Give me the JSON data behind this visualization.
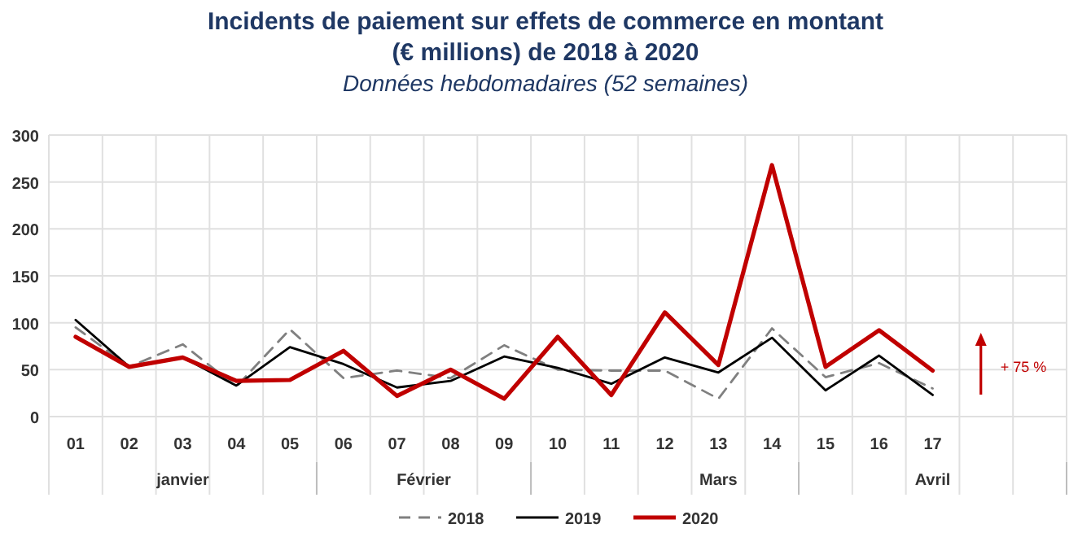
{
  "chart_data": {
    "type": "line",
    "title": "Incidents de paiement sur effets de commerce en montant\n(€ millions) de 2018 à 2020",
    "subtitle": "Données hebdomadaires (52 semaines)",
    "categories": [
      "01",
      "02",
      "03",
      "04",
      "05",
      "06",
      "07",
      "08",
      "09",
      "10",
      "11",
      "12",
      "13",
      "14",
      "15",
      "16",
      "17",
      null,
      null
    ],
    "series": [
      {
        "name": "2018",
        "color": "#808080",
        "line_style": "dashed",
        "values": [
          95,
          53,
          77,
          32,
          93,
          41,
          49,
          41,
          76,
          50,
          49,
          49,
          19,
          94,
          42,
          57,
          30,
          null,
          null
        ]
      },
      {
        "name": "2019",
        "color": "#000000",
        "line_style": "solid",
        "values": [
          103,
          53,
          63,
          33,
          74,
          56,
          31,
          38,
          64,
          52,
          35,
          63,
          47,
          84,
          28,
          65,
          23,
          null,
          null
        ]
      },
      {
        "name": "2020",
        "color": "#c00000",
        "line_style": "solid",
        "values": [
          85,
          53,
          63,
          38,
          39,
          70,
          22,
          50,
          19,
          85,
          23,
          111,
          55,
          268,
          53,
          92,
          49,
          null,
          null
        ]
      }
    ],
    "ylim": [
      0,
      300
    ],
    "yticks": [
      0,
      50,
      100,
      150,
      200,
      250,
      300
    ],
    "grid": true,
    "legend": "bottom",
    "annotations": [
      "janvier",
      "Février",
      "Mars",
      "Avril",
      "+ 75 %"
    ]
  }
}
